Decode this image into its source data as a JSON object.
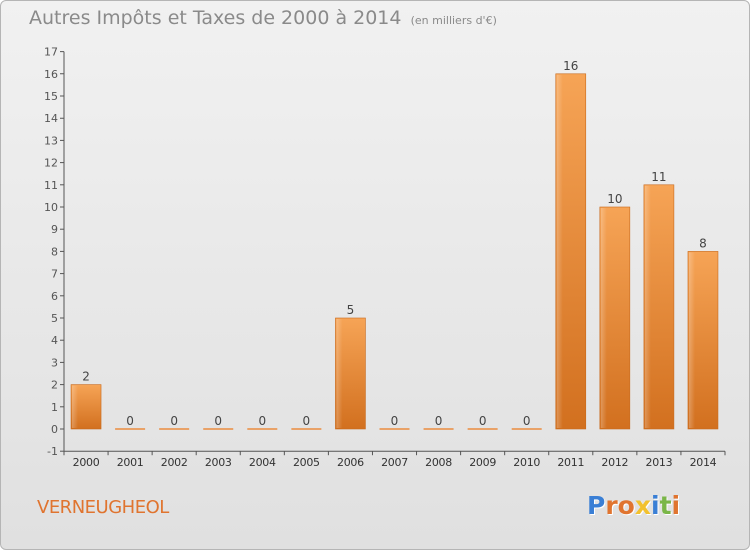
{
  "header": {
    "title": "Autres Impôts et Taxes de 2000 à 2014",
    "unit": "(en milliers d'€)"
  },
  "footer": {
    "commune": "VERNEUGHEOL",
    "brand_letters": [
      {
        "ch": "P",
        "color": "#3a7fd5"
      },
      {
        "ch": "r",
        "color": "#e0742f"
      },
      {
        "ch": "o",
        "color": "#e0742f"
      },
      {
        "ch": "x",
        "color": "#f2c12e"
      },
      {
        "ch": "i",
        "color": "#3a7fd5"
      },
      {
        "ch": "t",
        "color": "#7ab648"
      },
      {
        "ch": "i",
        "color": "#e0742f"
      }
    ]
  },
  "chart_data": {
    "type": "bar",
    "categories": [
      "2000",
      "2001",
      "2002",
      "2003",
      "2004",
      "2005",
      "2006",
      "2007",
      "2008",
      "2009",
      "2010",
      "2011",
      "2012",
      "2013",
      "2014"
    ],
    "values": [
      2,
      0,
      0,
      0,
      0,
      0,
      5,
      0,
      0,
      0,
      0,
      16,
      10,
      11,
      8
    ],
    "data_labels": [
      "2",
      "0",
      "0",
      "0",
      "0",
      "0",
      "5",
      "0",
      "0",
      "0",
      "0",
      "16",
      "10",
      "11",
      "8"
    ],
    "yticks": [
      "-1",
      "0",
      "1",
      "2",
      "3",
      "4",
      "5",
      "6",
      "7",
      "8",
      "9",
      "10",
      "11",
      "12",
      "13",
      "14",
      "15",
      "16",
      "17"
    ],
    "ylim": [
      -1,
      17
    ],
    "grid": false,
    "bar_color": "#e8872f"
  }
}
